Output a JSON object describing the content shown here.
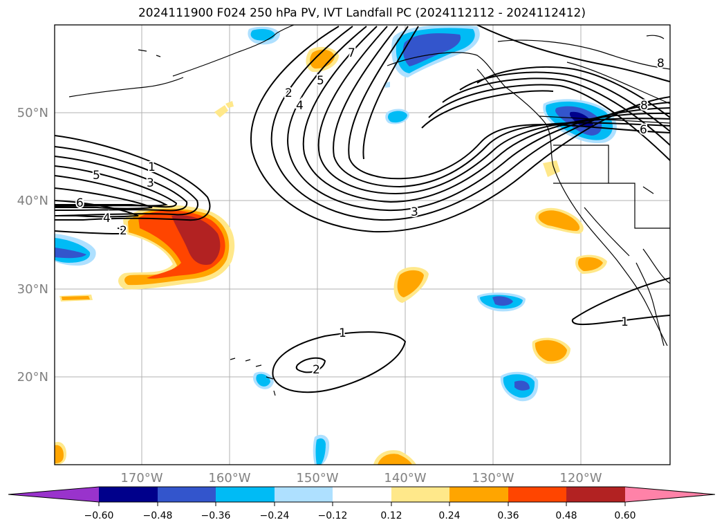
{
  "title": "2024111900 F024 250 hPa PV, IVT Landfall PC (2024112112 - 2024112412)",
  "map": {
    "lon_labels": [
      "170°W",
      "160°W",
      "150°W",
      "140°W",
      "130°W",
      "120°W"
    ],
    "lat_labels": [
      "50°N",
      "40°N",
      "30°N",
      "20°N"
    ],
    "contour_labels": [
      "1",
      "3",
      "5",
      "6",
      "4",
      "2",
      "2",
      "4",
      "5",
      "7",
      "3",
      "8",
      "6",
      "8",
      "1",
      "1",
      "2"
    ],
    "label_color": "#808080",
    "contour_color": "#000000"
  },
  "colorbar": {
    "ticks": [
      "−0.60",
      "−0.48",
      "−0.36",
      "−0.24",
      "−0.12",
      "0.12",
      "0.24",
      "0.36",
      "0.48",
      "0.60"
    ],
    "colors": [
      "#9933cc",
      "#00008b",
      "#3355cc",
      "#00bbf5",
      "#aee0ff",
      "#ffffff",
      "#ffe88a",
      "#ffa500",
      "#ff4500",
      "#b22222",
      "#ff82a8"
    ],
    "extend": "both"
  }
}
